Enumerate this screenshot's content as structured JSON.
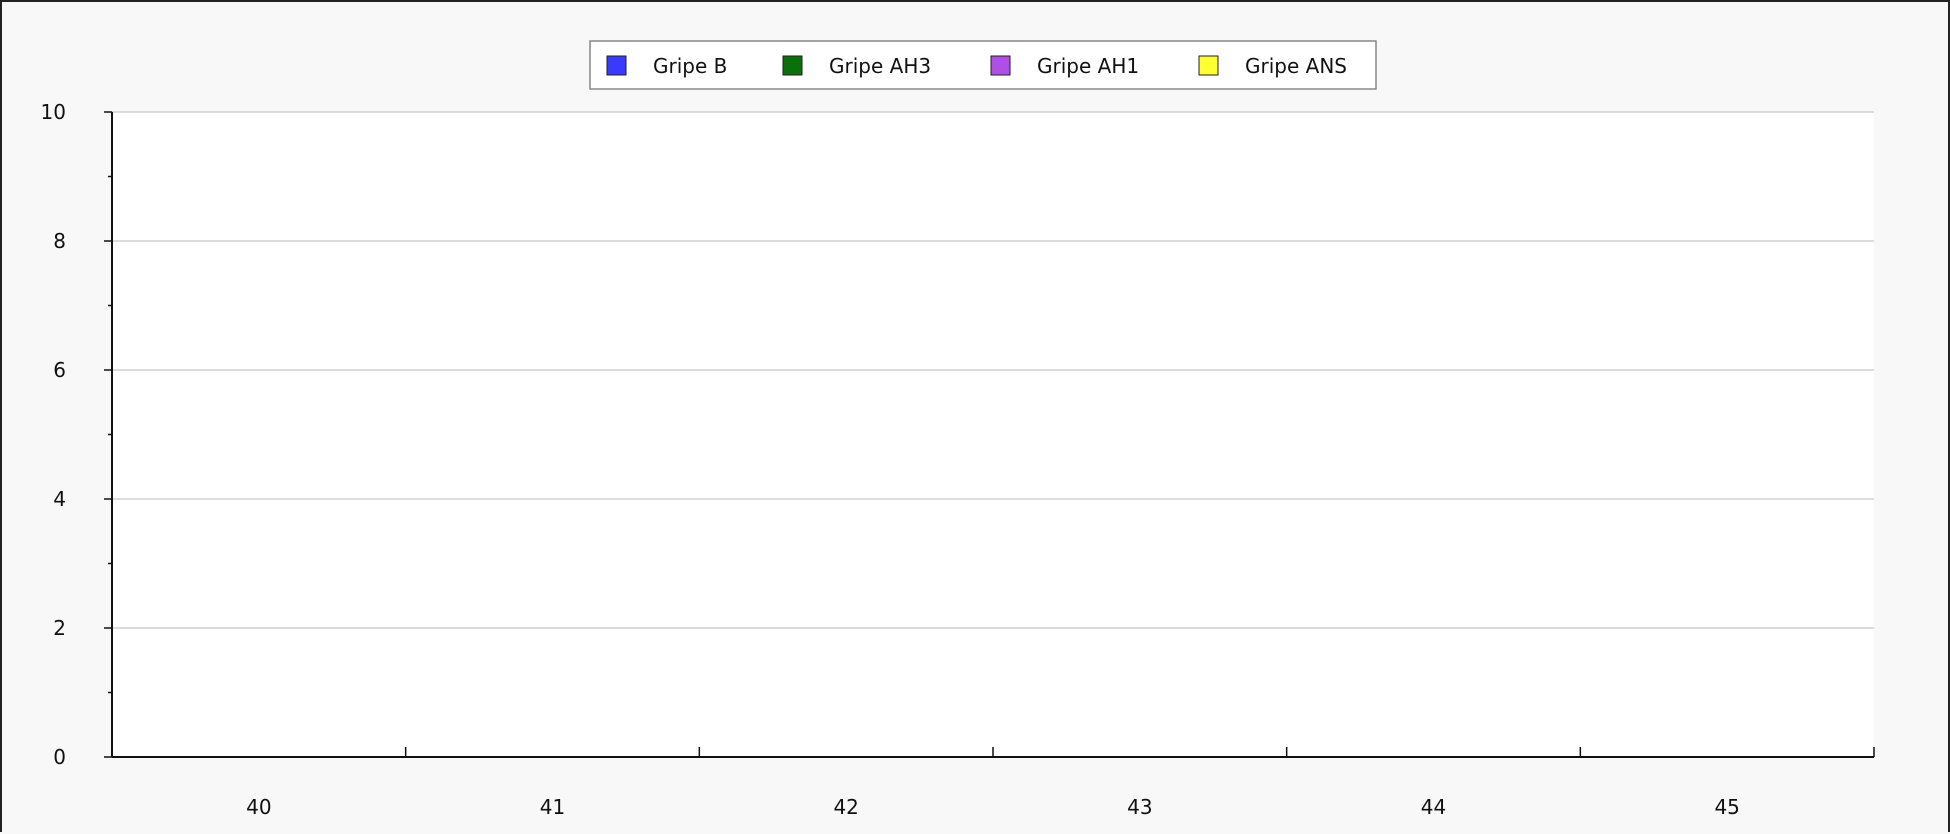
{
  "chart_data": {
    "type": "bar",
    "title": "",
    "xlabel": "",
    "ylabel": "",
    "categories": [
      "40",
      "41",
      "42",
      "43",
      "44",
      "45"
    ],
    "ylim": [
      0,
      10
    ],
    "y_ticks": [
      "0",
      "2",
      "4",
      "6",
      "8",
      "10"
    ],
    "grid": true,
    "legend_position": "top-center",
    "series": [
      {
        "name": "Gripe B",
        "color": "#3a3aff",
        "values": [
          0,
          0,
          0,
          0,
          0,
          0
        ]
      },
      {
        "name": "Gripe AH3",
        "color": "#0a700a",
        "values": [
          0,
          0,
          0,
          0,
          0,
          0
        ]
      },
      {
        "name": "Gripe AH1",
        "color": "#b04ee6",
        "values": [
          0,
          0,
          0,
          0,
          0,
          0
        ]
      },
      {
        "name": "Gripe ANS",
        "color": "#ffff33",
        "values": [
          0,
          0,
          0,
          0,
          0,
          0
        ]
      }
    ]
  }
}
